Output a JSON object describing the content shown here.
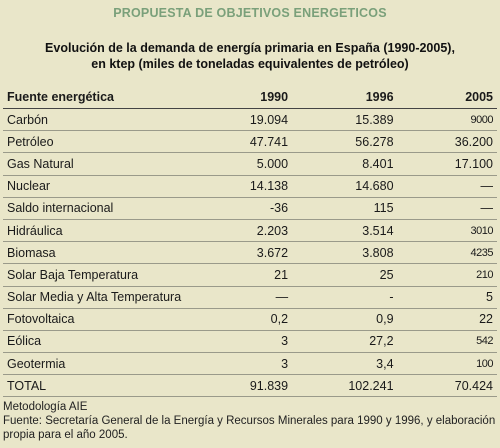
{
  "header": {
    "text": "PROPUESTA DE OBJETIVOS ENERGETICOS"
  },
  "title": {
    "line1": "Evolución de la demanda de energía primaria en España (1990-2005),",
    "line2": "en ktep (miles de toneladas equivalentes de petróleo)"
  },
  "table": {
    "columns": [
      "Fuente energética",
      "1990",
      "1996",
      "2005"
    ],
    "rows": [
      {
        "label": "Carbón",
        "v1990": "19.094",
        "v1996": "15.389",
        "v2005": "9000"
      },
      {
        "label": "Petróleo",
        "v1990": "47.741",
        "v1996": "56.278",
        "v2005": "36.200"
      },
      {
        "label": "Gas Natural",
        "v1990": "5.000",
        "v1996": "8.401",
        "v2005": "17.100"
      },
      {
        "label": "Nuclear",
        "v1990": "14.138",
        "v1996": "14.680",
        "v2005": "—"
      },
      {
        "label": " Saldo internacional",
        "v1990": "-36",
        "v1996": "115",
        "v2005": "—"
      },
      {
        "label": "Hidráulica",
        "v1990": "2.203",
        "v1996": "3.514",
        "v2005": "3010"
      },
      {
        "label": "Biomasa",
        "v1990": "3.672",
        "v1996": "3.808",
        "v2005": "4235"
      },
      {
        "label": "Solar Baja  Temperatura",
        "v1990": "21",
        "v1996": "25",
        "v2005": "210"
      },
      {
        "label": "Solar Media y Alta Temperatura",
        "v1990": "—",
        "v1996": "-",
        "v2005": "5"
      },
      {
        "label": "Fotovoltaica",
        "v1990": "0,2",
        "v1996": "0,9",
        "v2005": "22"
      },
      {
        "label": "Eólica",
        "v1990": "3",
        "v1996": "27,2",
        "v2005": "542"
      },
      {
        "label": "Geotermia",
        "v1990": "3",
        "v1996": "3,4",
        "v2005": "100"
      },
      {
        "label": " TOTAL",
        "v1990": "91.839",
        "v1996": "102.241",
        "v2005": "70.424"
      }
    ]
  },
  "footer": {
    "line1": "Metodología AIE",
    "line2": "Fuente: Secretaría General de la Energía y Recursos Minerales para 1990 y 1996, y elaboración propia para el año 2005."
  }
}
